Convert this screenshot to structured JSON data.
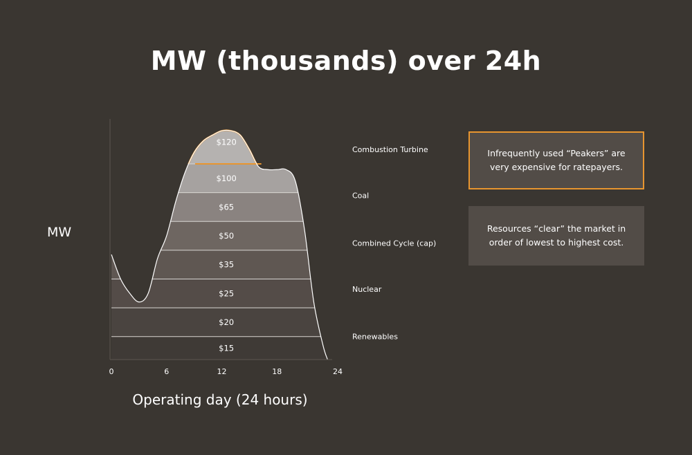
{
  "chart_data": {
    "type": "area",
    "title": "MW (thousands) over 24h",
    "ylabel": "MW",
    "xlabel": "Operating day (24 hours)",
    "xlim": [
      0,
      24
    ],
    "x_ticks": [
      0,
      6,
      12,
      18,
      24
    ],
    "load_curve": {
      "x": [
        0,
        1,
        2,
        3,
        4,
        5,
        6,
        7,
        8,
        9,
        10,
        11,
        12,
        13,
        14,
        15,
        16,
        17,
        18,
        19,
        20,
        21,
        22,
        23,
        23.5
      ],
      "y": [
        3.65,
        2.8,
        2.3,
        2.0,
        2.3,
        3.5,
        4.3,
        5.5,
        6.5,
        7.2,
        7.6,
        7.8,
        7.95,
        7.95,
        7.8,
        7.3,
        6.7,
        6.6,
        6.6,
        6.6,
        6.2,
        4.5,
        2.0,
        0.5,
        0
      ]
    },
    "price_tiers": [
      {
        "price": "$15",
        "upper": 0.8
      },
      {
        "price": "$20",
        "upper": 1.8
      },
      {
        "price": "$25",
        "upper": 2.8
      },
      {
        "price": "$35",
        "upper": 3.8
      },
      {
        "price": "$50",
        "upper": 4.8
      },
      {
        "price": "$65",
        "upper": 5.8
      },
      {
        "price": "$100",
        "upper": 6.8
      },
      {
        "price": "$120",
        "upper": 8.0
      }
    ],
    "resource_labels": [
      {
        "name": "Combustion Turbine",
        "level": 7.3
      },
      {
        "name": "Coal",
        "level": 5.7
      },
      {
        "name": "Combined Cycle (cap)",
        "level": 4.05
      },
      {
        "name": "Nuclear",
        "level": 2.45
      },
      {
        "name": "Renewables",
        "level": 0.8
      }
    ],
    "highlight_tier_color": "#e8952f",
    "tier_colors": [
      "#3f3a36",
      "#4a4440",
      "#544c48",
      "#5f5752",
      "#6e6661",
      "#8a8380",
      "#a6a2a0",
      "#b5b2b0"
    ]
  },
  "notes": {
    "peakers": "Infrequently used “Peakers” are very expensive for ratepayers.",
    "clear": "Resources “clear” the market in order of lowest to highest cost."
  }
}
